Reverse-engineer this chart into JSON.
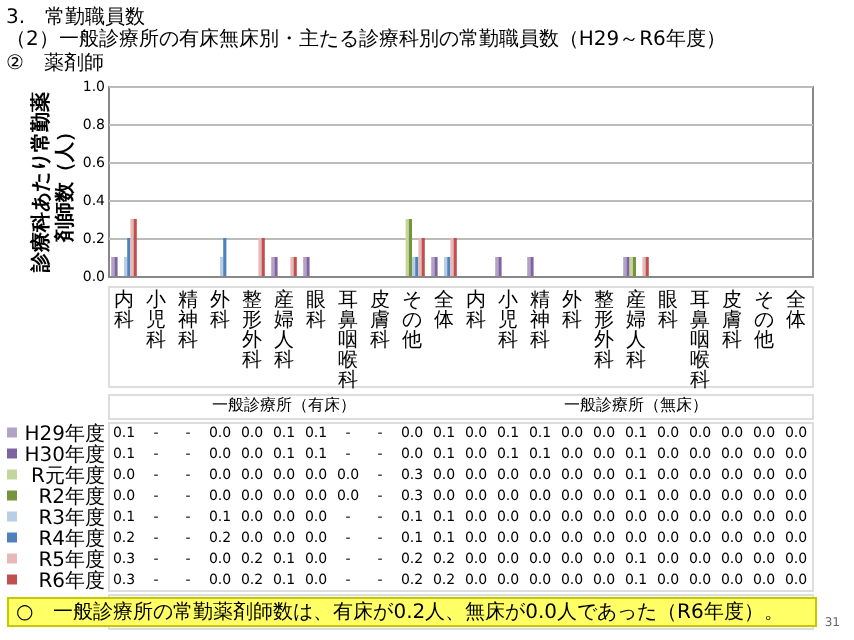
{
  "chart_data": {
    "type": "bar",
    "title": "3.　常勤職員数",
    "subtitle": "（2）一般診療所の有床無床別・主たる診療科別の常勤職員数（H29～R6年度）",
    "ylabel": "診療科あたり常勤薬剤師数（人）",
    "categories": [
      "内科",
      "小児科",
      "精神科",
      "外科",
      "整形外科",
      "産婦人科",
      "眼科",
      "耳鼻咽喉科",
      "皮膚科",
      "その他",
      "全体",
      "内科",
      "小児科",
      "精神科",
      "外科",
      "整形外科",
      "産婦人科",
      "眼科",
      "耳鼻咽喉科",
      "皮膚科",
      "その他",
      "全体"
    ],
    "series": [
      {
        "name": "H29年度",
        "color": "#b3a2c7",
        "values": [
          0.1,
          null,
          null,
          0.0,
          0.0,
          0.1,
          0.1,
          null,
          null,
          0.0,
          0.1,
          0.0,
          0.1,
          0.1,
          0.0,
          0.0,
          0.1,
          0.0,
          0.0,
          0.0,
          0.0,
          0.0
        ],
        "value_labels": [
          "0.1",
          "-",
          "-",
          "0.0",
          "0.0",
          "0.1",
          "0.1",
          "-",
          "-",
          "0.0",
          "0.1",
          "0.0",
          "0.1",
          "0.1",
          "0.0",
          "0.0",
          "0.1",
          "0.0",
          "0.0",
          "0.0",
          "0.0",
          "0.0"
        ]
      },
      {
        "name": "H30年度",
        "color": "#8064a2",
        "values": [
          0.1,
          null,
          null,
          0.0,
          0.0,
          0.1,
          0.1,
          null,
          null,
          0.0,
          0.1,
          0.0,
          0.1,
          0.1,
          0.0,
          0.0,
          0.1,
          0.0,
          0.0,
          0.0,
          0.0,
          0.0
        ],
        "value_labels": [
          "0.1",
          "-",
          "-",
          "0.0",
          "0.0",
          "0.1",
          "0.1",
          "-",
          "-",
          "0.0",
          "0.1",
          "0.0",
          "0.1",
          "0.1",
          "0.0",
          "0.0",
          "0.1",
          "0.0",
          "0.0",
          "0.0",
          "0.0",
          "0.0"
        ]
      },
      {
        "name": "R元年度",
        "color": "#c3d69b",
        "values": [
          0.0,
          null,
          null,
          0.0,
          0.0,
          0.0,
          0.0,
          0.0,
          null,
          0.3,
          0.0,
          0.0,
          0.0,
          0.0,
          0.0,
          0.0,
          0.1,
          0.0,
          0.0,
          0.0,
          0.0,
          0.0
        ],
        "value_labels": [
          "0.0",
          "-",
          "-",
          "0.0",
          "0.0",
          "0.0",
          "0.0",
          "0.0",
          "-",
          "0.3",
          "0.0",
          "0.0",
          "0.0",
          "0.0",
          "0.0",
          "0.0",
          "0.1",
          "0.0",
          "0.0",
          "0.0",
          "0.0",
          "0.0"
        ]
      },
      {
        "name": "R2年度",
        "color": "#77933c",
        "values": [
          0.0,
          null,
          null,
          0.0,
          0.0,
          0.0,
          0.0,
          0.0,
          null,
          0.3,
          0.0,
          0.0,
          0.0,
          0.0,
          0.0,
          0.0,
          0.1,
          0.0,
          0.0,
          0.0,
          0.0,
          0.0
        ],
        "value_labels": [
          "0.0",
          "-",
          "-",
          "0.0",
          "0.0",
          "0.0",
          "0.0",
          "0.0",
          "-",
          "0.3",
          "0.0",
          "0.0",
          "0.0",
          "0.0",
          "0.0",
          "0.0",
          "0.1",
          "0.0",
          "0.0",
          "0.0",
          "0.0",
          "0.0"
        ]
      },
      {
        "name": "R3年度",
        "color": "#b9cde5",
        "values": [
          0.1,
          null,
          null,
          0.1,
          0.0,
          0.0,
          0.0,
          null,
          null,
          0.1,
          0.1,
          0.0,
          0.0,
          0.0,
          0.0,
          0.0,
          0.0,
          0.0,
          0.0,
          0.0,
          0.0,
          0.0
        ],
        "value_labels": [
          "0.1",
          "-",
          "-",
          "0.1",
          "0.0",
          "0.0",
          "0.0",
          "-",
          "-",
          "0.1",
          "0.1",
          "0.0",
          "0.0",
          "0.0",
          "0.0",
          "0.0",
          "0.0",
          "0.0",
          "0.0",
          "0.0",
          "0.0",
          "0.0"
        ]
      },
      {
        "name": "R4年度",
        "color": "#4f81bd",
        "values": [
          0.2,
          null,
          null,
          0.2,
          0.0,
          0.0,
          0.0,
          null,
          null,
          0.1,
          0.1,
          0.0,
          0.0,
          0.0,
          0.0,
          0.0,
          0.0,
          0.0,
          0.0,
          0.0,
          0.0,
          0.0
        ],
        "value_labels": [
          "0.2",
          "-",
          "-",
          "0.2",
          "0.0",
          "0.0",
          "0.0",
          "-",
          "-",
          "0.1",
          "0.1",
          "0.0",
          "0.0",
          "0.0",
          "0.0",
          "0.0",
          "0.0",
          "0.0",
          "0.0",
          "0.0",
          "0.0",
          "0.0"
        ]
      },
      {
        "name": "R5年度",
        "color": "#e6b9b8",
        "values": [
          0.3,
          null,
          null,
          0.0,
          0.2,
          0.1,
          0.0,
          null,
          null,
          0.2,
          0.2,
          0.0,
          0.0,
          0.0,
          0.0,
          0.0,
          0.1,
          0.0,
          0.0,
          0.0,
          0.0,
          0.0
        ],
        "value_labels": [
          "0.3",
          "-",
          "-",
          "0.0",
          "0.2",
          "0.1",
          "0.0",
          "-",
          "-",
          "0.2",
          "0.2",
          "0.0",
          "0.0",
          "0.0",
          "0.0",
          "0.0",
          "0.1",
          "0.0",
          "0.0",
          "0.0",
          "0.0",
          "0.0"
        ]
      },
      {
        "name": "R6年度",
        "color": "#c0504d",
        "values": [
          0.3,
          null,
          null,
          0.0,
          0.2,
          0.1,
          0.0,
          null,
          null,
          0.2,
          0.2,
          0.0,
          0.0,
          0.0,
          0.0,
          0.0,
          0.1,
          0.0,
          0.0,
          0.0,
          0.0,
          0.0
        ],
        "value_labels": [
          "0.3",
          "-",
          "-",
          "0.0",
          "0.2",
          "0.1",
          "0.0",
          "-",
          "-",
          "0.2",
          "0.2",
          "0.0",
          "0.0",
          "0.0",
          "0.0",
          "0.0",
          "0.1",
          "0.0",
          "0.0",
          "0.0",
          "0.0",
          "0.0"
        ]
      }
    ],
    "ylim": [
      0,
      1
    ],
    "yticks": [
      {
        "value": 0,
        "label": "0.0"
      },
      0.2,
      0.4,
      0.6,
      0.8,
      {
        "value": 1,
        "label": "1.0"
      }
    ],
    "grid": "y",
    "legend": "bottom left",
    "annotations": [
      "②　薬剤師",
      "一般診療所（有床）",
      "一般診療所（無床）",
      "○　一般診療所の常勤薬剤師数は、有床が0.2人、無床が0.0人であった（R6年度）。",
      "31"
    ]
  }
}
